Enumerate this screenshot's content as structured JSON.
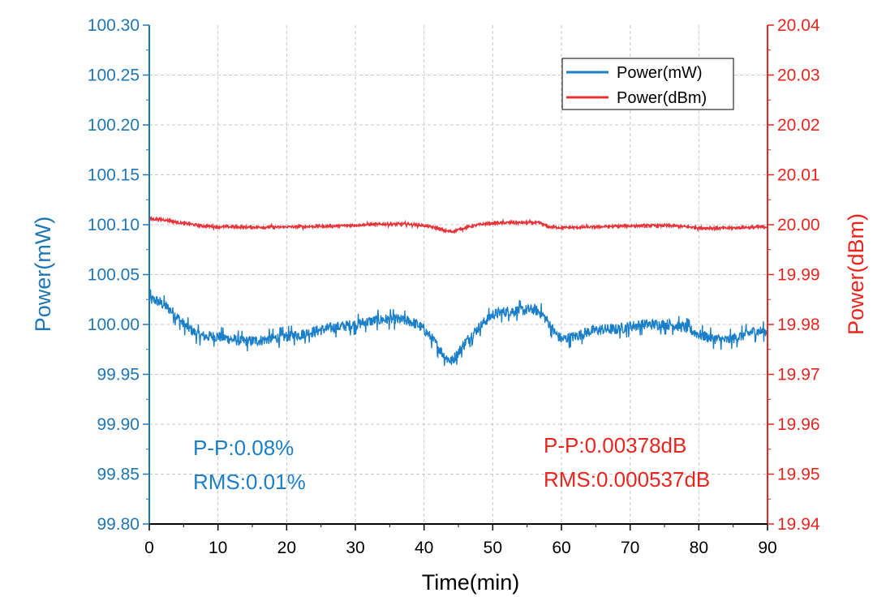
{
  "chart_data": {
    "type": "line",
    "xlabel": "Time(min)",
    "ylabel_left": "Power(mW)",
    "ylabel_right": "Power(dBm)",
    "xlim": [
      0,
      90
    ],
    "ylim_left": [
      99.8,
      100.3
    ],
    "ylim_right": [
      19.94,
      20.04
    ],
    "x_ticks": [
      "0",
      "10",
      "20",
      "30",
      "40",
      "50",
      "60",
      "70",
      "80",
      "90"
    ],
    "y_left_ticks": [
      "99.80",
      "99.85",
      "99.90",
      "99.95",
      "100.00",
      "100.05",
      "100.10",
      "100.15",
      "100.20",
      "100.25",
      "100.30"
    ],
    "y_right_ticks": [
      "19.94",
      "19.95",
      "19.96",
      "19.97",
      "19.98",
      "19.99",
      "20.00",
      "20.01",
      "20.02",
      "20.03",
      "20.04"
    ],
    "grid": true,
    "legend_position": "top-right",
    "colors": {
      "mw": "#1a7fc8",
      "dbm": "#e8333a",
      "left_axis": "#1f77b4",
      "right_axis": "#e8261f"
    },
    "series": [
      {
        "name": "Power(mW)",
        "axis": "left",
        "x": [
          0,
          1,
          2,
          3,
          4,
          5,
          6,
          7,
          8,
          10,
          12,
          14,
          16,
          18,
          20,
          22,
          24,
          26,
          28,
          30,
          32,
          34,
          36,
          38,
          39,
          40,
          41,
          42,
          43,
          44,
          45,
          46,
          47,
          48,
          49,
          50,
          52,
          54,
          56,
          57,
          58,
          59,
          60,
          62,
          64,
          66,
          68,
          70,
          72,
          74,
          76,
          78,
          80,
          82,
          84,
          86,
          88,
          90
        ],
        "y": [
          100.025,
          100.024,
          100.02,
          100.015,
          100.008,
          100.0,
          99.995,
          99.99,
          99.988,
          99.988,
          99.985,
          99.983,
          99.984,
          99.986,
          99.988,
          99.99,
          99.993,
          99.996,
          99.998,
          100.0,
          100.003,
          100.005,
          100.005,
          100.003,
          100.0,
          99.995,
          99.987,
          99.978,
          99.968,
          99.963,
          99.972,
          99.982,
          99.99,
          99.997,
          100.004,
          100.01,
          100.013,
          100.014,
          100.015,
          100.012,
          100.003,
          99.992,
          99.985,
          99.988,
          99.993,
          99.995,
          99.995,
          99.998,
          100.0,
          100.0,
          100.0,
          99.997,
          99.99,
          99.986,
          99.984,
          99.988,
          99.993,
          99.993
        ],
        "noise": 0.007
      },
      {
        "name": "Power(dBm)",
        "axis": "right",
        "x": [
          0,
          1,
          2,
          3,
          4,
          5,
          6,
          8,
          10,
          14,
          18,
          22,
          26,
          30,
          34,
          38,
          40,
          42,
          43,
          44,
          46,
          48,
          50,
          52,
          54,
          56,
          57,
          58,
          60,
          64,
          68,
          72,
          76,
          78,
          80,
          82,
          84,
          86,
          88,
          90
        ],
        "y": [
          20.0011,
          20.0011,
          20.001,
          20.0008,
          20.0005,
          20.0003,
          20.0001,
          19.9997,
          19.9996,
          19.9995,
          19.9995,
          19.9996,
          19.9997,
          19.9999,
          20.0001,
          20.0001,
          19.9998,
          19.9993,
          19.9988,
          19.9986,
          19.9994,
          20.0,
          20.0003,
          20.0004,
          20.0004,
          20.0004,
          20.0003,
          19.9996,
          19.9994,
          19.9995,
          19.9997,
          19.9998,
          19.9998,
          19.9996,
          19.9994,
          19.9993,
          19.9993,
          19.9994,
          19.9995,
          19.9996
        ],
        "noise": 0.0003
      }
    ],
    "annotations": {
      "left": [
        "P-P:0.08%",
        "RMS:0.01%"
      ],
      "right": [
        "P-P:0.00378dB",
        "RMS:0.000537dB"
      ]
    }
  }
}
